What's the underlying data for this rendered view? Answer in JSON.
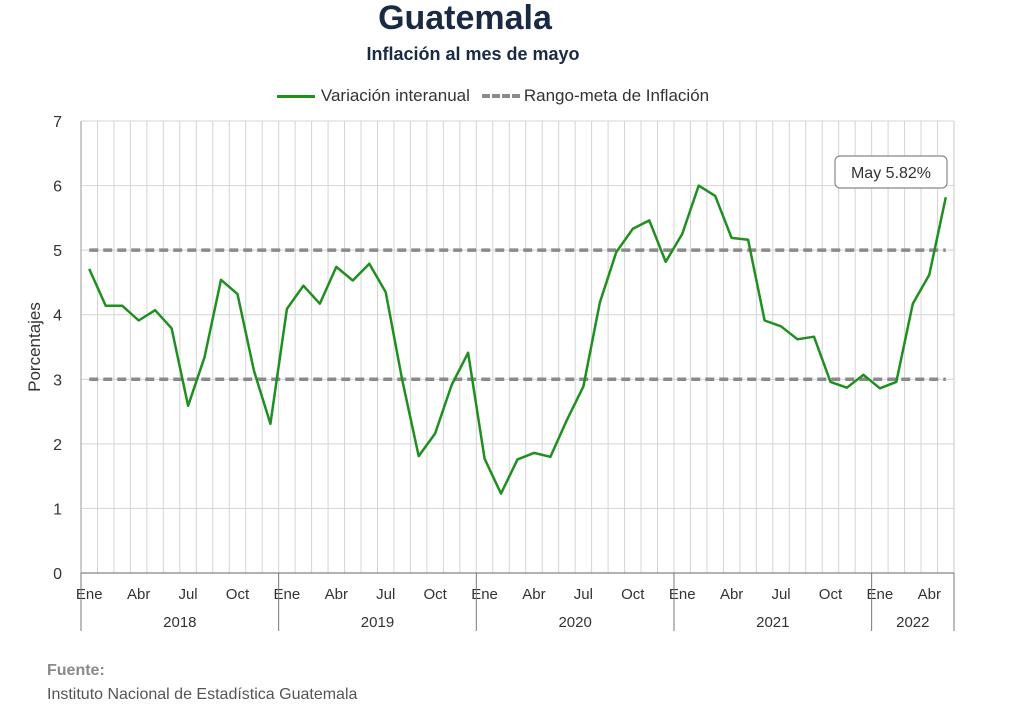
{
  "title": "Guatemala",
  "subtitle": "Inflación al mes de mayo",
  "legend": {
    "series": "Variación interanual",
    "range": "Rango-meta de Inflación"
  },
  "source": {
    "label": "Fuente:",
    "text": "Instituto Nacional de Estadística Guatemala"
  },
  "colors": {
    "series": "#1f8f1f",
    "range": "#8a8a8a",
    "grid": "#d4d4d4"
  },
  "chart_data": {
    "type": "line",
    "title": "Guatemala",
    "subtitle": "Inflación al mes de mayo",
    "xlabel": "",
    "ylabel": "Porcentajes",
    "ylim": [
      0,
      7
    ],
    "yticks": [
      0,
      1,
      2,
      3,
      4,
      5,
      6,
      7
    ],
    "grid": true,
    "legend_position": "top",
    "month_tick_labels": [
      "Ene",
      "Abr",
      "Jul",
      "Oct"
    ],
    "years": [
      "2018",
      "2019",
      "2020",
      "2021",
      "2022"
    ],
    "x": [
      "2018-01",
      "2018-02",
      "2018-03",
      "2018-04",
      "2018-05",
      "2018-06",
      "2018-07",
      "2018-08",
      "2018-09",
      "2018-10",
      "2018-11",
      "2018-12",
      "2019-01",
      "2019-02",
      "2019-03",
      "2019-04",
      "2019-05",
      "2019-06",
      "2019-07",
      "2019-08",
      "2019-09",
      "2019-10",
      "2019-11",
      "2019-12",
      "2020-01",
      "2020-02",
      "2020-03",
      "2020-04",
      "2020-05",
      "2020-06",
      "2020-07",
      "2020-08",
      "2020-09",
      "2020-10",
      "2020-11",
      "2020-12",
      "2021-01",
      "2021-02",
      "2021-03",
      "2021-04",
      "2021-05",
      "2021-06",
      "2021-07",
      "2021-08",
      "2021-09",
      "2021-10",
      "2021-11",
      "2021-12",
      "2022-01",
      "2022-02",
      "2022-03",
      "2022-04",
      "2022-05"
    ],
    "series": [
      {
        "name": "Variación interanual",
        "values": [
          4.71,
          4.14,
          4.14,
          3.91,
          4.07,
          3.79,
          2.59,
          3.34,
          4.54,
          4.32,
          3.13,
          2.31,
          4.09,
          4.45,
          4.17,
          4.74,
          4.53,
          4.79,
          4.35,
          2.99,
          1.81,
          2.16,
          2.91,
          3.41,
          1.77,
          1.23,
          1.76,
          1.86,
          1.8,
          2.37,
          2.89,
          4.19,
          4.97,
          5.33,
          5.46,
          4.82,
          5.25,
          6.0,
          5.84,
          5.19,
          5.16,
          3.91,
          3.82,
          3.62,
          3.66,
          2.96,
          2.87,
          3.07,
          2.86,
          2.96,
          4.17,
          4.62,
          5.82
        ]
      },
      {
        "name": "Rango-meta de Inflación",
        "values_lower": 3,
        "values_upper": 5
      }
    ],
    "annotation": {
      "text": "May 5.82%"
    }
  }
}
